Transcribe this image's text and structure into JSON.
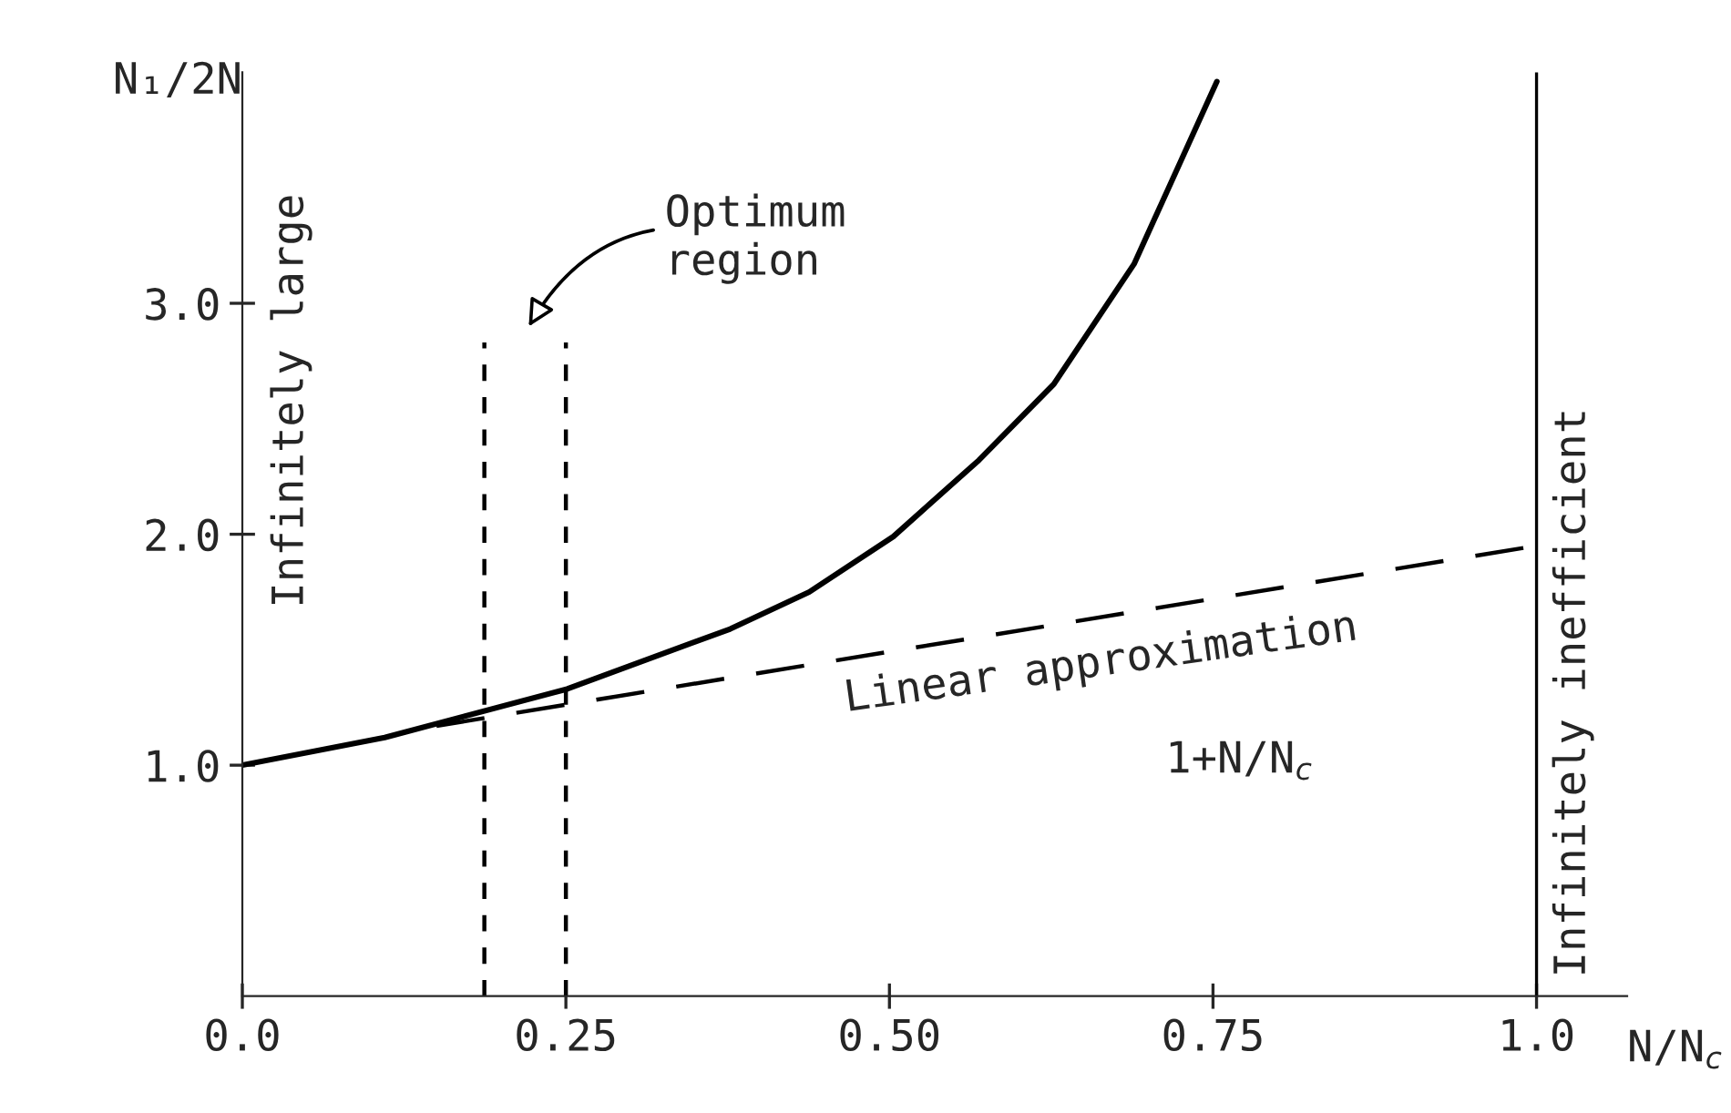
{
  "chart_data": {
    "type": "line",
    "xlabel": "N/N$_{c}$",
    "ylabel": "N₁/2N",
    "xlim": [
      0,
      1.07
    ],
    "ylim": [
      0,
      4.0
    ],
    "xticks": [
      {
        "value": 0,
        "label": "0.0"
      },
      0.25,
      {
        "value": 0.5,
        "label": "0.50"
      },
      0.75,
      {
        "value": 1.0,
        "label": "1.0"
      }
    ],
    "yticks": [
      {
        "value": 1.0,
        "label": "1.0"
      },
      {
        "value": 2.0,
        "label": "2.0"
      },
      {
        "value": 3.0,
        "label": "3.0"
      }
    ],
    "grid": false,
    "series": [
      {
        "color": "#000000",
        "line_style": "solid",
        "x": [
          0,
          0.11,
          0.251,
          0.377,
          0.438,
          0.503,
          0.569,
          0.627,
          0.689,
          0.753
        ],
        "values": [
          1.0,
          1.12,
          1.33,
          1.59,
          1.75,
          1.99,
          2.32,
          2.65,
          3.17,
          3.96
        ]
      },
      {
        "color": "#000000",
        "line_style": "dashed",
        "x": [
          0.15,
          1.0
        ],
        "values": [
          1.17,
          1.95
        ]
      },
      {
        "color": "#000000",
        "line_style": "dotted",
        "x": [
          0.187,
          0.187
        ],
        "values": [
          0,
          2.83
        ]
      },
      {
        "color": "#000000",
        "line_style": "dotted",
        "x": [
          0.25,
          0.25
        ],
        "values": [
          0,
          2.83
        ]
      }
    ],
    "ref_lines": [
      {
        "axis": "x",
        "value": 1.0,
        "label": "Infinitely inefficient",
        "color": "#000000",
        "line_style": "solid"
      }
    ],
    "annotations": [
      "Optimum\nregion",
      "Linear approximation",
      "1+N/N$_{c}$",
      "Infinitely large"
    ]
  }
}
